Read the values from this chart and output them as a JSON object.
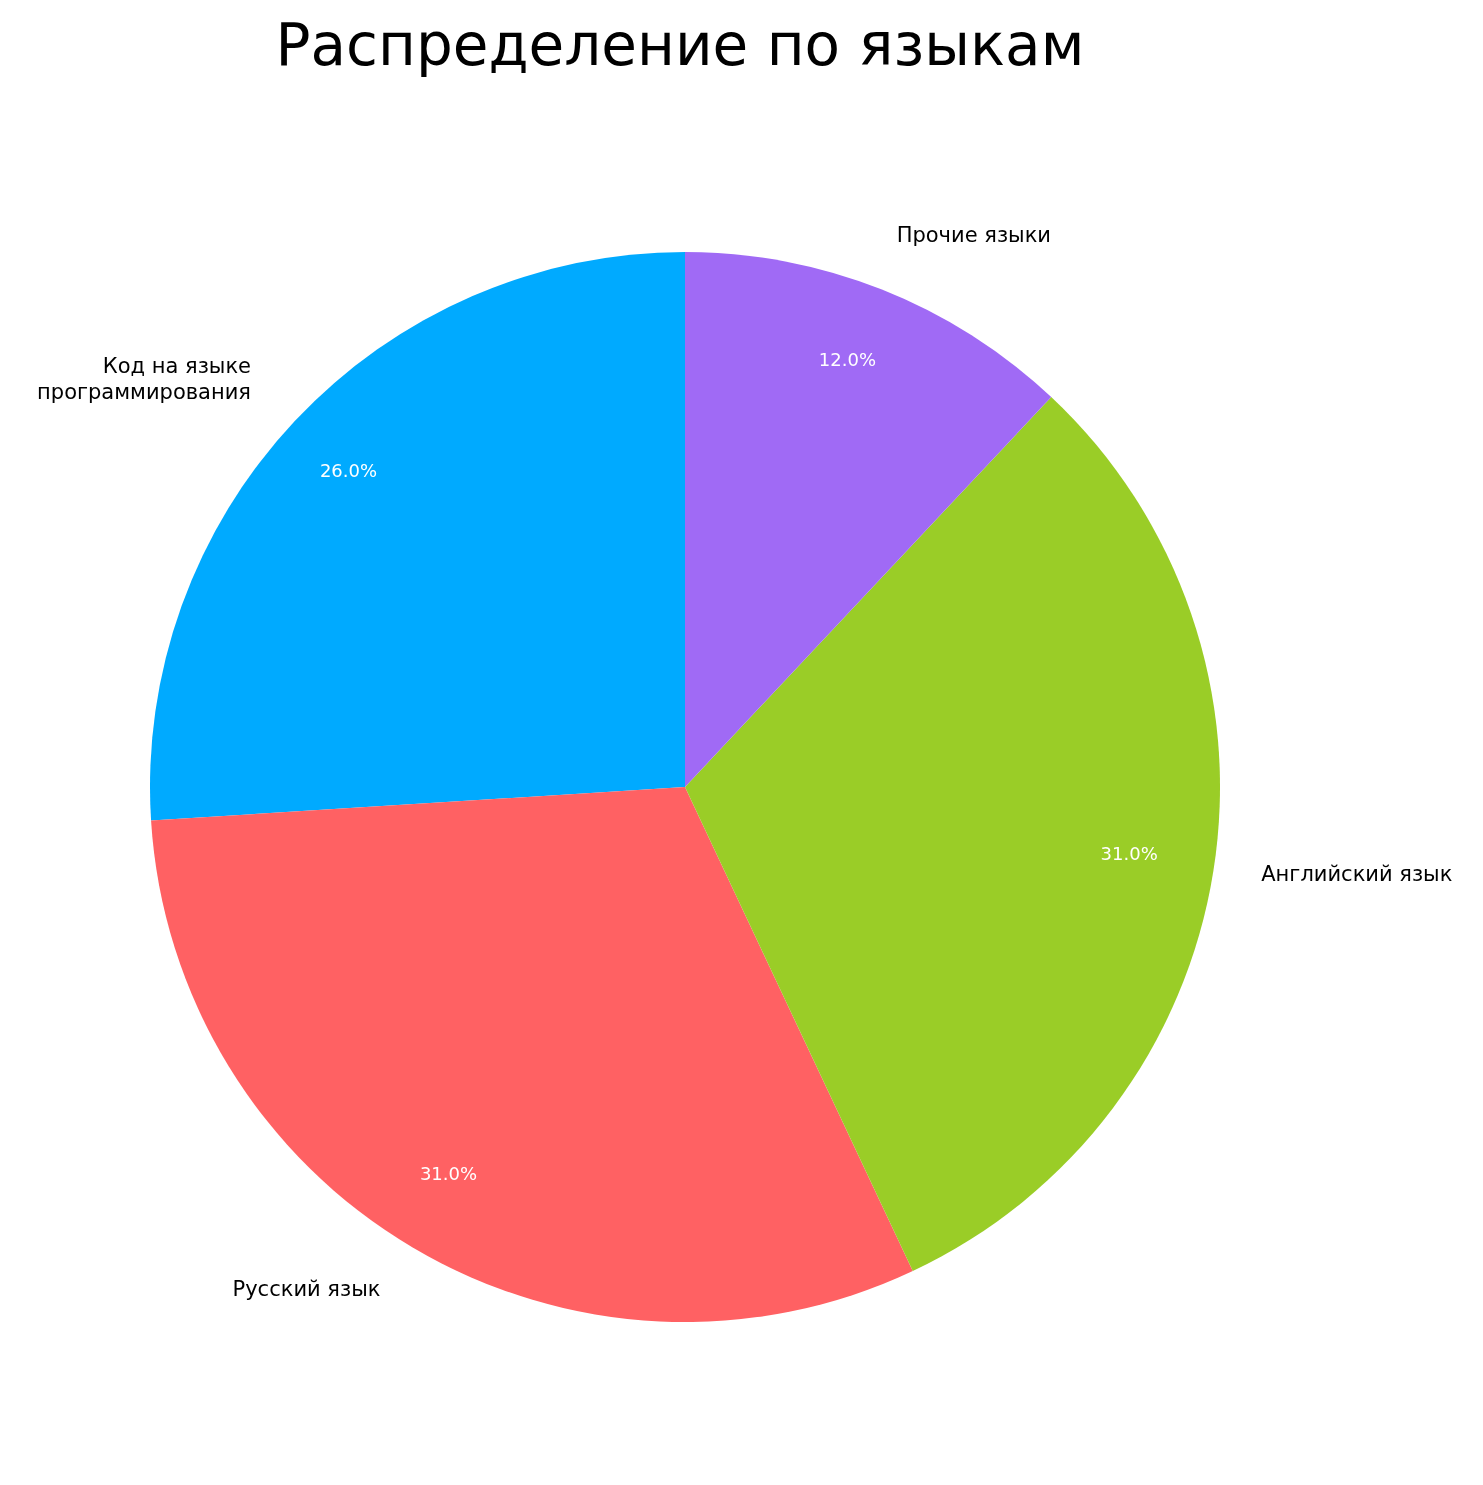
{
  "chart_data": {
    "type": "pie",
    "title": "Распределение по языкам",
    "categories": [
      "Код на языке\nпрограммирования",
      "Русский язык",
      "Английский язык",
      "Прочие языки"
    ],
    "values": [
      26,
      31,
      31,
      12
    ],
    "colors": [
      "#00aaff",
      "#ff6163",
      "#9acd27",
      "#a06af5"
    ],
    "value_labels": [
      "26.0%",
      "31.0%",
      "31.0%",
      "12.0%"
    ]
  }
}
